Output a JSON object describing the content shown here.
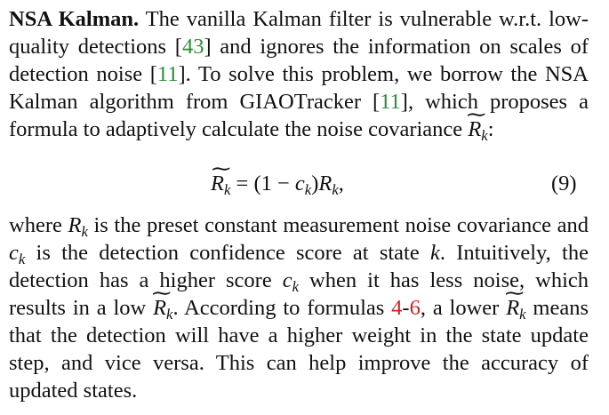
{
  "para1": {
    "heading": "NSA Kalman.",
    "t1": " The vanilla Kalman filter is vulnerable w.r.t. low-quality detections [",
    "ref1": "43",
    "t2": "] and ignores the information on scales of detection noise [",
    "ref2": "11",
    "t3": "]. To solve this problem, we borrow the NSA Kalman algorithm from GIAOTracker [",
    "ref3": "11",
    "t4": "], which proposes a formula to adaptively calculate the noise covariance ",
    "var_R": "R",
    "sub_k": "k",
    "t5": ":"
  },
  "equation": {
    "R": "R",
    "k": "k",
    "eq": " = (1 − ",
    "c": "c",
    "rparen": ")",
    "R2": "R",
    "end": ",",
    "number": "(9)"
  },
  "para2": {
    "t1": "where ",
    "R": "R",
    "k": "k",
    "t2": " is the preset constant measurement noise covariance and ",
    "c": "c",
    "t3": " is the detection confidence score at state ",
    "kk": "k",
    "t4": ". Intuitively, the detection has a higher score ",
    "t5": " when it has less noise, which results in a low ",
    "t6": ". According to formulas ",
    "ref_a": "4",
    "dash": "-",
    "ref_b": "6",
    "t7": ", a lower ",
    "t8": " means that the detection will have a higher weight in the state update step, and vice versa. This can help improve the accuracy of updated states."
  }
}
